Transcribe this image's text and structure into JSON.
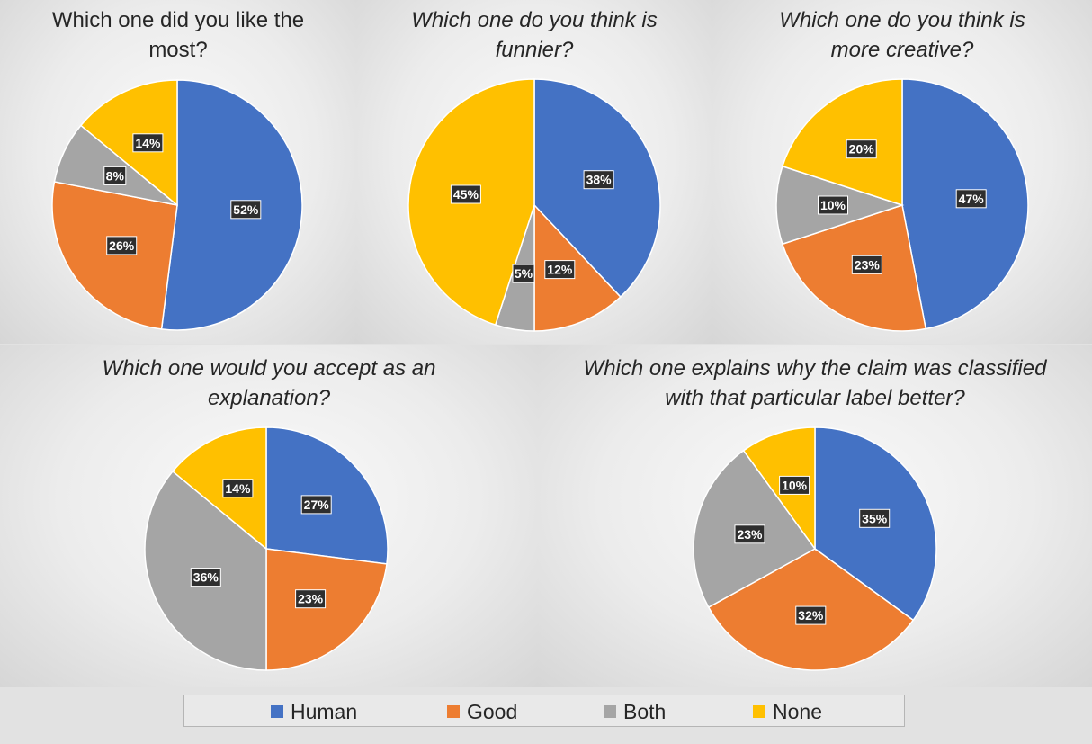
{
  "colors": {
    "human": "#4472C4",
    "good": "#ED7D31",
    "both": "#A5A5A5",
    "none": "#FFC000"
  },
  "legend": [
    {
      "label": "Human",
      "color": "#4472C4"
    },
    {
      "label": "Good",
      "color": "#ED7D31"
    },
    {
      "label": "Both",
      "color": "#A5A5A5"
    },
    {
      "label": "None",
      "color": "#FFC000"
    }
  ],
  "chart_data": [
    {
      "type": "pie",
      "title": "Which one did you like the most?",
      "labels": [
        "Human",
        "Good",
        "Both",
        "None"
      ],
      "values": [
        52,
        26,
        8,
        14
      ],
      "data_labels": [
        "52%",
        "26%",
        "8%",
        "14%"
      ],
      "legend_position": "bottom"
    },
    {
      "type": "pie",
      "title": "Which one do you think is funnier?",
      "labels": [
        "Human",
        "Good",
        "Both",
        "None"
      ],
      "values": [
        38,
        12,
        5,
        45
      ],
      "data_labels": [
        "38%",
        "12%",
        "5%",
        "45%"
      ],
      "legend_position": "bottom"
    },
    {
      "type": "pie",
      "title": "Which one do you think is more creative?",
      "labels": [
        "Human",
        "Good",
        "Both",
        "None"
      ],
      "values": [
        47,
        23,
        10,
        20
      ],
      "data_labels": [
        "47%",
        "23%",
        "10%",
        "20%"
      ],
      "legend_position": "bottom"
    },
    {
      "type": "pie",
      "title": "Which one would you accept as an explanation?",
      "labels": [
        "Human",
        "Good",
        "Both",
        "None"
      ],
      "values": [
        27,
        23,
        36,
        14
      ],
      "data_labels": [
        "27%",
        "23%",
        "36%",
        "14%"
      ],
      "legend_position": "bottom"
    },
    {
      "type": "pie",
      "title": "Which one explains why the claim was classified with that particular label better?",
      "labels": [
        "Human",
        "Good",
        "Both",
        "None"
      ],
      "values": [
        35,
        32,
        23,
        10
      ],
      "data_labels": [
        "35%",
        "32%",
        "23%",
        "10%"
      ],
      "legend_position": "bottom"
    }
  ]
}
